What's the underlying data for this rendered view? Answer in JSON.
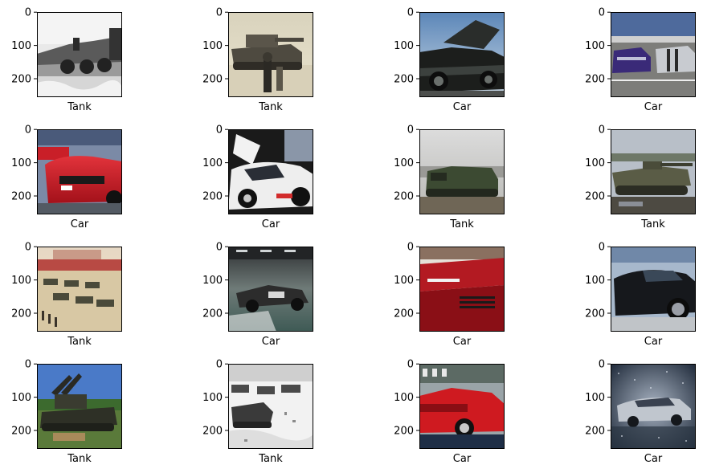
{
  "chart_data": {
    "type": "image-grid",
    "rows": 4,
    "cols": 4,
    "y_ticks": [
      0,
      100,
      200
    ],
    "image_extent": [
      0,
      256
    ],
    "panels": [
      {
        "label": "Tank",
        "scene": "bw-tank"
      },
      {
        "label": "Tank",
        "scene": "sepia-tank"
      },
      {
        "label": "Car",
        "scene": "hood-car"
      },
      {
        "label": "Car",
        "scene": "parking-lot"
      },
      {
        "label": "Car",
        "scene": "red-sports"
      },
      {
        "label": "Car",
        "scene": "white-race"
      },
      {
        "label": "Tank",
        "scene": "green-apc"
      },
      {
        "label": "Tank",
        "scene": "ifv-mud"
      },
      {
        "label": "Tank",
        "scene": "parade"
      },
      {
        "label": "Car",
        "scene": "garage-race"
      },
      {
        "label": "Car",
        "scene": "red-closeup"
      },
      {
        "label": "Car",
        "scene": "black-coupe"
      },
      {
        "label": "Tank",
        "scene": "aa-tank"
      },
      {
        "label": "Tank",
        "scene": "snow-tanks"
      },
      {
        "label": "Car",
        "scene": "red-ferrari"
      },
      {
        "label": "Car",
        "scene": "rain-mustang"
      }
    ],
    "colors": {
      "axis": "#000000",
      "text": "#000000",
      "background": "#ffffff"
    }
  }
}
